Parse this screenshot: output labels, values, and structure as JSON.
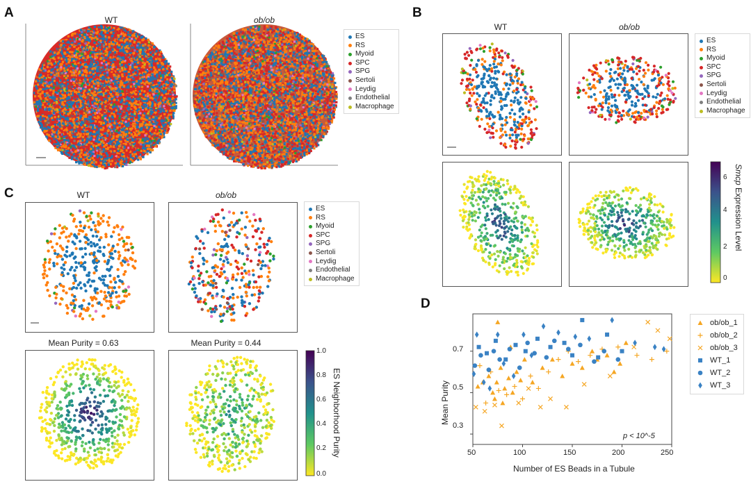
{
  "panel_letters": {
    "a": "A",
    "b": "B",
    "c": "C",
    "d": "D"
  },
  "panel_a": {
    "title_left": "WT",
    "title_right": "ob/ob"
  },
  "panel_b": {
    "title_left": "WT",
    "title_right": "ob/ob",
    "colorbar": {
      "label_italic": "Smcp",
      "label_rest": " Expression Level",
      "ticks": [
        "6",
        "4",
        "2",
        "0"
      ]
    }
  },
  "panel_c": {
    "title_left": "WT",
    "title_right": "ob/ob",
    "purity_left": "Mean Purity = 0.63",
    "purity_right": "Mean Purity = 0.44",
    "colorbar": {
      "label": "ES Neighborhood Purity",
      "ticks": [
        "1.0",
        "0.8",
        "0.6",
        "0.4",
        "0.2",
        "0.0"
      ]
    }
  },
  "cell_types": [
    {
      "name": "ES",
      "color": "#1f77b4"
    },
    {
      "name": "RS",
      "color": "#ff7f0e"
    },
    {
      "name": "Myoid",
      "color": "#2ca02c"
    },
    {
      "name": "SPC",
      "color": "#d62728"
    },
    {
      "name": "SPG",
      "color": "#9467bd"
    },
    {
      "name": "Sertoli",
      "color": "#8c564b"
    },
    {
      "name": "Leydig",
      "color": "#e377c2"
    },
    {
      "name": "Endothelial",
      "color": "#7f7f7f"
    },
    {
      "name": "Macrophage",
      "color": "#bcbd22"
    }
  ],
  "chart_data": {
    "type": "scatter",
    "xlabel": "Number of ES Beads in a Tubule",
    "ylabel": "Mean Purity",
    "xlim": [
      50,
      250
    ],
    "ylim": [
      0.25,
      0.88
    ],
    "xticks": [
      "50",
      "100",
      "150",
      "200",
      "250"
    ],
    "yticks": [
      "0.3",
      "0.5",
      "0.7"
    ],
    "annotation": "p < 10^-5",
    "legend_position": "right",
    "series": [
      {
        "name": "ob/ob_1",
        "color": "#f5a623",
        "marker": "triangle",
        "points": [
          [
            55,
            0.53
          ],
          [
            60,
            0.55
          ],
          [
            66,
            0.58
          ],
          [
            70,
            0.5
          ],
          [
            72,
            0.47
          ],
          [
            74,
            0.55
          ],
          [
            78,
            0.62
          ],
          [
            80,
            0.45
          ],
          [
            82,
            0.52
          ],
          [
            86,
            0.57
          ],
          [
            90,
            0.5
          ],
          [
            94,
            0.6
          ],
          [
            98,
            0.56
          ],
          [
            102,
            0.66
          ],
          [
            110,
            0.55
          ],
          [
            120,
            0.62
          ],
          [
            130,
            0.66
          ],
          [
            140,
            0.58
          ],
          [
            150,
            0.64
          ],
          [
            160,
            0.62
          ],
          [
            170,
            0.7
          ],
          [
            175,
            0.66
          ],
          [
            185,
            0.68
          ],
          [
            192,
            0.6
          ],
          [
            198,
            0.64
          ],
          [
            204,
            0.74
          ],
          [
            75,
            0.84
          ],
          [
            88,
            0.72
          ]
        ]
      },
      {
        "name": "ob/ob_2",
        "color": "#f5a623",
        "marker": "plus",
        "points": [
          [
            57,
            0.63
          ],
          [
            63,
            0.45
          ],
          [
            68,
            0.6
          ],
          [
            76,
            0.51
          ],
          [
            84,
            0.49
          ],
          [
            92,
            0.53
          ],
          [
            100,
            0.47
          ],
          [
            108,
            0.58
          ],
          [
            116,
            0.52
          ],
          [
            126,
            0.6
          ],
          [
            136,
            0.66
          ],
          [
            146,
            0.7
          ],
          [
            156,
            0.65
          ],
          [
            168,
            0.68
          ],
          [
            180,
            0.71
          ],
          [
            196,
            0.72
          ],
          [
            215,
            0.68
          ],
          [
            230,
            0.66
          ],
          [
            245,
            0.7
          ]
        ]
      },
      {
        "name": "ob/ob_3",
        "color": "#f5a623",
        "marker": "x",
        "points": [
          [
            53,
            0.43
          ],
          [
            62,
            0.41
          ],
          [
            72,
            0.44
          ],
          [
            79,
            0.34
          ],
          [
            96,
            0.45
          ],
          [
            106,
            0.52
          ],
          [
            118,
            0.43
          ],
          [
            128,
            0.47
          ],
          [
            144,
            0.43
          ],
          [
            162,
            0.54
          ],
          [
            188,
            0.58
          ],
          [
            212,
            0.72
          ],
          [
            226,
            0.84
          ],
          [
            236,
            0.8
          ],
          [
            248,
            0.76
          ]
        ]
      },
      {
        "name": "WT_1",
        "color": "#3a82c4",
        "marker": "square",
        "points": [
          [
            56,
            0.72
          ],
          [
            64,
            0.69
          ],
          [
            73,
            0.75
          ],
          [
            83,
            0.66
          ],
          [
            93,
            0.73
          ],
          [
            103,
            0.7
          ],
          [
            115,
            0.76
          ],
          [
            128,
            0.72
          ],
          [
            142,
            0.74
          ],
          [
            150,
            0.68
          ],
          [
            160,
            0.85
          ],
          [
            176,
            0.67
          ],
          [
            185,
            0.78
          ],
          [
            200,
            0.7
          ]
        ]
      },
      {
        "name": "WT_2",
        "color": "#3a82c4",
        "marker": "circle",
        "points": [
          [
            52,
            0.63
          ],
          [
            58,
            0.68
          ],
          [
            66,
            0.61
          ],
          [
            71,
            0.7
          ],
          [
            77,
            0.66
          ],
          [
            87,
            0.71
          ],
          [
            97,
            0.62
          ],
          [
            105,
            0.74
          ],
          [
            112,
            0.69
          ],
          [
            124,
            0.67
          ],
          [
            132,
            0.75
          ],
          [
            146,
            0.71
          ],
          [
            158,
            0.73
          ],
          [
            172,
            0.65
          ],
          [
            182,
            0.7
          ],
          [
            196,
            0.66
          ]
        ]
      },
      {
        "name": "WT_3",
        "color": "#3a82c4",
        "marker": "diamond",
        "points": [
          [
            51,
            0.59
          ],
          [
            54,
            0.78
          ],
          [
            61,
            0.55
          ],
          [
            67,
            0.52
          ],
          [
            75,
            0.78
          ],
          [
            81,
            0.64
          ],
          [
            91,
            0.58
          ],
          [
            101,
            0.78
          ],
          [
            109,
            0.68
          ],
          [
            121,
            0.82
          ],
          [
            136,
            0.79
          ],
          [
            153,
            0.77
          ],
          [
            167,
            0.76
          ],
          [
            190,
            0.85
          ],
          [
            213,
            0.74
          ],
          [
            233,
            0.72
          ],
          [
            242,
            0.71
          ]
        ]
      }
    ]
  }
}
